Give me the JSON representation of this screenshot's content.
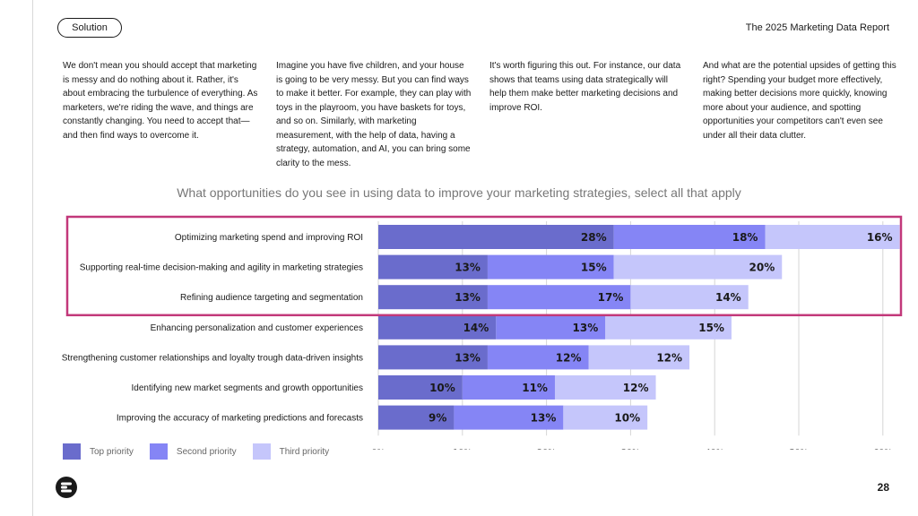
{
  "header": {
    "section_label": "Solution",
    "report_title": "The 2025 Marketing Data Report"
  },
  "body_columns": [
    "We don't mean you should accept that marketing is messy and do nothing about it. Rather, it's about embracing the turbulence of everything. As marketers, we're riding the wave, and things are constantly changing. You need to accept that—and then find ways to overcome it.",
    "Imagine you have five children, and your house is going to be very messy. But you can find ways to make it better. For example, they can play with toys in the playroom, you have baskets for toys, and so on. Similarly, with marketing measurement, with the help of data, having a strategy, automation, and AI, you can bring some clarity to the mess.",
    "It's worth figuring this out. For instance, our data shows that teams using data strategically will help them make better marketing decisions and improve ROI.",
    "And what are the potential upsides of getting this right? Spending your budget more effectively, making better decisions more quickly, knowing more about your audience, and spotting opportunities your competitors can't even see under all their data clutter."
  ],
  "chart_data": {
    "type": "bar",
    "orientation": "horizontal",
    "stacked": true,
    "title": "What opportunities do you see in using data to improve your marketing strategies, select all that apply",
    "categories": [
      "Optimizing marketing spend and improving ROI",
      "Supporting real-time decision-making and agility in marketing strategies",
      "Refining audience targeting and segmentation",
      "Enhancing personalization and customer experiences",
      "Strengthening customer relationships and loyalty trough data-driven insights",
      "Identifying new market segments and growth opportunities",
      "Improving the accuracy of marketing predictions and forecasts"
    ],
    "series": [
      {
        "name": "Top priority",
        "color": "#6a6ccc",
        "values": [
          28,
          13,
          13,
          14,
          13,
          10,
          9
        ]
      },
      {
        "name": "Second priority",
        "color": "#8585f5",
        "values": [
          18,
          15,
          17,
          13,
          12,
          11,
          13
        ]
      },
      {
        "name": "Third priority",
        "color": "#c5c6fb",
        "values": [
          16,
          20,
          14,
          15,
          12,
          12,
          10
        ]
      }
    ],
    "value_suffix": "%",
    "xlim": [
      0,
      60
    ],
    "xticks": [
      "0%",
      "10%",
      "20%",
      "30%",
      "40%",
      "50%",
      "60%"
    ],
    "grid": true,
    "legend_position": "bottom-left",
    "highlighted_categories": [
      0,
      1,
      2
    ],
    "highlight_color": "#c2387a"
  },
  "footer": {
    "page_number": "28",
    "logo_icon": "brand-logo-icon"
  }
}
